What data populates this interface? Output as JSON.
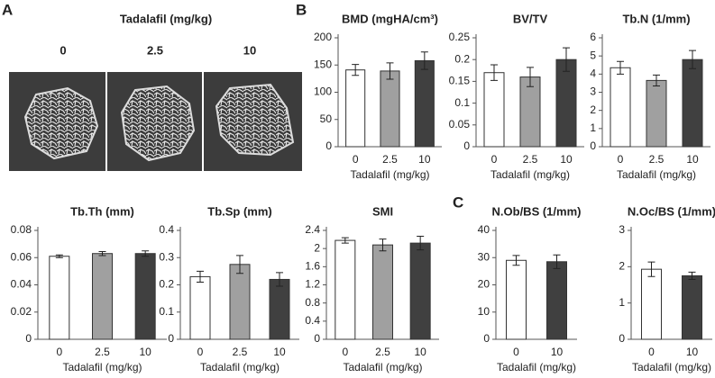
{
  "panel_labels": [
    "A",
    "B",
    "C"
  ],
  "panel_a": {
    "title": "Tadalafil (mg/kg)",
    "labels": [
      "0",
      "2.5",
      "10"
    ]
  },
  "chart_data": [
    {
      "type": "bar",
      "title": "BMD (mgHA/cm³)",
      "xlabel": "Tadalafil (mg/kg)",
      "categories": [
        "0",
        "2.5",
        "10"
      ],
      "values": [
        141,
        139,
        158
      ],
      "errors": [
        10,
        15,
        16
      ],
      "colors": [
        "#ffffff",
        "#a0a0a0",
        "#404040"
      ],
      "ylim": [
        0,
        200
      ],
      "yticks": [
        0,
        50,
        100,
        150,
        200
      ]
    },
    {
      "type": "bar",
      "title": "BV/TV",
      "xlabel": "Tadalafil (mg/kg)",
      "categories": [
        "0",
        "2.5",
        "10"
      ],
      "values": [
        0.17,
        0.16,
        0.2
      ],
      "errors": [
        0.018,
        0.022,
        0.027
      ],
      "colors": [
        "#ffffff",
        "#a0a0a0",
        "#404040"
      ],
      "ylim": [
        0,
        0.25
      ],
      "yticks": [
        0,
        0.05,
        0.1,
        0.15,
        0.2,
        0.25
      ]
    },
    {
      "type": "bar",
      "title": "Tb.N (1/mm)",
      "xlabel": "Tadalafil (mg/kg)",
      "categories": [
        "0",
        "2.5",
        "10"
      ],
      "values": [
        4.35,
        3.65,
        4.8
      ],
      "errors": [
        0.35,
        0.3,
        0.5
      ],
      "colors": [
        "#ffffff",
        "#a0a0a0",
        "#404040"
      ],
      "ylim": [
        0,
        6
      ],
      "yticks": [
        0,
        1,
        2,
        3,
        4,
        5,
        6
      ]
    },
    {
      "type": "bar",
      "title": "Tb.Th (mm)",
      "xlabel": "Tadalafil (mg/kg)",
      "categories": [
        "0",
        "2.5",
        "10"
      ],
      "values": [
        0.061,
        0.063,
        0.063
      ],
      "errors": [
        0.001,
        0.0015,
        0.002
      ],
      "colors": [
        "#ffffff",
        "#a0a0a0",
        "#404040"
      ],
      "ylim": [
        0,
        0.08
      ],
      "yticks": [
        0,
        0.02,
        0.04,
        0.06,
        0.08
      ]
    },
    {
      "type": "bar",
      "title": "Tb.Sp (mm)",
      "xlabel": "Tadalafil (mg/kg)",
      "categories": [
        "0",
        "2.5",
        "10"
      ],
      "values": [
        0.23,
        0.275,
        0.22
      ],
      "errors": [
        0.02,
        0.033,
        0.025
      ],
      "colors": [
        "#ffffff",
        "#a0a0a0",
        "#404040"
      ],
      "ylim": [
        0,
        0.4
      ],
      "yticks": [
        0,
        0.1,
        0.2,
        0.3,
        0.4
      ]
    },
    {
      "type": "bar",
      "title": "SMI",
      "xlabel": "Tadalafil (mg/kg)",
      "categories": [
        "0",
        "2.5",
        "10"
      ],
      "values": [
        2.18,
        2.08,
        2.12
      ],
      "errors": [
        0.06,
        0.13,
        0.15
      ],
      "colors": [
        "#ffffff",
        "#a0a0a0",
        "#404040"
      ],
      "ylim": [
        0,
        2.4
      ],
      "yticks": [
        0,
        0.4,
        0.8,
        1.2,
        1.6,
        2,
        2.4
      ]
    },
    {
      "type": "bar",
      "title": "N.Ob/BS (1/mm)",
      "xlabel": "Tadalafil (mg/kg)",
      "categories": [
        "0",
        "10"
      ],
      "values": [
        29,
        28.5
      ],
      "errors": [
        1.8,
        2.5
      ],
      "colors": [
        "#ffffff",
        "#404040"
      ],
      "ylim": [
        0,
        40
      ],
      "yticks": [
        0,
        10,
        20,
        30,
        40
      ]
    },
    {
      "type": "bar",
      "title": "N.Oc/BS (1/mm)",
      "xlabel": "Tadalafil (mg/kg)",
      "categories": [
        "0",
        "10"
      ],
      "values": [
        1.93,
        1.75
      ],
      "errors": [
        0.2,
        0.1
      ],
      "colors": [
        "#ffffff",
        "#404040"
      ],
      "ylim": [
        0,
        3
      ],
      "yticks": [
        0,
        1,
        2,
        3
      ]
    }
  ]
}
